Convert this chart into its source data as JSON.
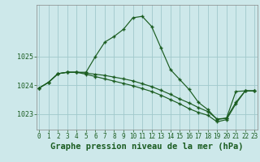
{
  "xlabel": "Graphe pression niveau de la mer (hPa)",
  "background_color": "#cde8ea",
  "grid_color": "#a0c8cc",
  "line_color": "#1a5c20",
  "marker": "+",
  "x": [
    0,
    1,
    2,
    3,
    4,
    5,
    6,
    7,
    8,
    9,
    10,
    11,
    12,
    13,
    14,
    15,
    16,
    17,
    18,
    19,
    20,
    21,
    22,
    23
  ],
  "line1": [
    1023.9,
    1024.1,
    1024.4,
    1024.45,
    1024.45,
    1024.45,
    1025.0,
    1025.5,
    1025.7,
    1025.95,
    1026.35,
    1026.4,
    1026.05,
    1025.3,
    1024.55,
    1024.2,
    1023.85,
    1023.4,
    1023.15,
    1022.8,
    1022.85,
    1023.4,
    1023.8,
    1023.8
  ],
  "line2": [
    1023.9,
    1024.1,
    1024.4,
    1024.45,
    1024.45,
    1024.42,
    1024.38,
    1024.34,
    1024.28,
    1024.22,
    1024.15,
    1024.05,
    1023.95,
    1023.82,
    1023.68,
    1023.52,
    1023.38,
    1023.22,
    1023.08,
    1022.82,
    1022.85,
    1023.78,
    1023.8,
    1023.8
  ],
  "line3": [
    1023.9,
    1024.1,
    1024.4,
    1024.45,
    1024.45,
    1024.38,
    1024.3,
    1024.22,
    1024.14,
    1024.06,
    1023.98,
    1023.88,
    1023.78,
    1023.65,
    1023.5,
    1023.35,
    1023.18,
    1023.05,
    1022.95,
    1022.72,
    1022.8,
    1023.35,
    1023.8,
    1023.8
  ],
  "ylim": [
    1022.45,
    1026.8
  ],
  "yticks": [
    1023,
    1024,
    1025
  ],
  "xlim": [
    -0.3,
    23.3
  ],
  "xticks": [
    0,
    1,
    2,
    3,
    4,
    5,
    6,
    7,
    8,
    9,
    10,
    11,
    12,
    13,
    14,
    15,
    16,
    17,
    18,
    19,
    20,
    21,
    22,
    23
  ],
  "xtick_labels": [
    "0",
    "1",
    "2",
    "3",
    "4",
    "5",
    "6",
    "7",
    "8",
    "9",
    "10",
    "11",
    "12",
    "13",
    "14",
    "15",
    "16",
    "17",
    "18",
    "19",
    "20",
    "21",
    "22",
    "23"
  ],
  "xlabel_fontsize": 7.5,
  "tick_fontsize": 5.5
}
